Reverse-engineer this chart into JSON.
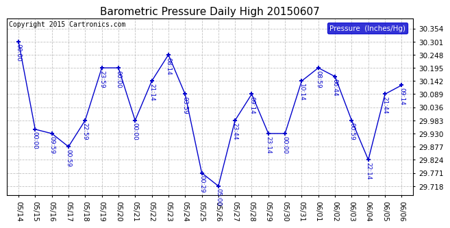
{
  "title": "Barometric Pressure Daily High 20150607",
  "copyright_text": "Copyright 2015 Cartronics.com",
  "legend_label": "Pressure  (Inches/Hg)",
  "data_points": [
    {
      "date": "05/14",
      "time": "00:00",
      "value": 30.301
    },
    {
      "date": "05/15",
      "time": "00:00",
      "value": 29.947
    },
    {
      "date": "05/16",
      "time": "09:59",
      "value": 29.93
    },
    {
      "date": "05/17",
      "time": "00:59",
      "value": 29.877
    },
    {
      "date": "05/18",
      "time": "22:59",
      "value": 29.983
    },
    {
      "date": "05/19",
      "time": "23:59",
      "value": 30.195
    },
    {
      "date": "05/20",
      "time": "00:00",
      "value": 30.195
    },
    {
      "date": "05/21",
      "time": "00:00",
      "value": 29.983
    },
    {
      "date": "05/22",
      "time": "21:14",
      "value": 30.142
    },
    {
      "date": "05/23",
      "time": "08:14",
      "value": 30.248
    },
    {
      "date": "05/24",
      "time": "03:59",
      "value": 30.089
    },
    {
      "date": "05/25",
      "time": "00:29",
      "value": 29.771
    },
    {
      "date": "05/26",
      "time": "05:00",
      "value": 29.718
    },
    {
      "date": "05/27",
      "time": "23:44",
      "value": 29.983
    },
    {
      "date": "05/28",
      "time": "09:14",
      "value": 30.089
    },
    {
      "date": "05/29",
      "time": "23:14",
      "value": 29.93
    },
    {
      "date": "05/30",
      "time": "00:00",
      "value": 29.93
    },
    {
      "date": "05/31",
      "time": "10:14",
      "value": 30.142
    },
    {
      "date": "06/01",
      "time": "08:59",
      "value": 30.195
    },
    {
      "date": "06/02",
      "time": "06:44",
      "value": 30.16
    },
    {
      "date": "06/03",
      "time": "00:59",
      "value": 29.983
    },
    {
      "date": "06/04",
      "time": "22:14",
      "value": 29.824
    },
    {
      "date": "06/05",
      "time": "21:44",
      "value": 30.089
    },
    {
      "date": "06/06",
      "time": "09:14",
      "value": 30.125
    }
  ],
  "y_ticks": [
    29.718,
    29.771,
    29.824,
    29.877,
    29.93,
    29.983,
    30.036,
    30.089,
    30.142,
    30.195,
    30.248,
    30.301,
    30.354
  ],
  "ylim": [
    29.68,
    30.395
  ],
  "line_color": "#0000cc",
  "bg_color": "#ffffff",
  "grid_color": "#bbbbbb",
  "title_fontsize": 11,
  "tick_fontsize": 7.5,
  "annotation_fontsize": 6.5,
  "legend_bg": "#0000cc",
  "legend_fg": "#ffffff",
  "copyright_fontsize": 7
}
